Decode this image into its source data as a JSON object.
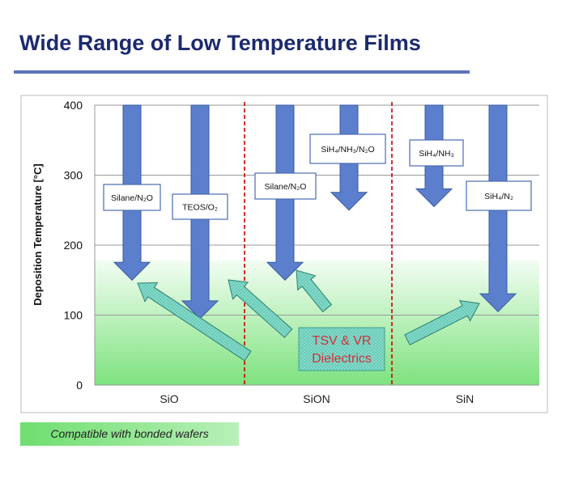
{
  "slide": {
    "title": "Wide Range of Low Temperature Films",
    "footer_badge": "Compatible with bonded wafers"
  },
  "chart_data": {
    "type": "bar",
    "ylabel": "Deposition Temperature [°C]",
    "ylim": [
      0,
      400
    ],
    "yticks": [
      0,
      100,
      200,
      300,
      400
    ],
    "grid": true,
    "categories": [
      "SiO",
      "SiON",
      "SiN"
    ],
    "compatible_band_max_c": 178,
    "films": [
      {
        "category": "SiO",
        "label": "Silane/N₂O",
        "start": 400,
        "end": 150
      },
      {
        "category": "SiO",
        "label": "TEOS/O₂",
        "start": 400,
        "end": 95
      },
      {
        "category": "SiON",
        "label": "Silane/N₂O",
        "start": 400,
        "end": 150
      },
      {
        "category": "SiON",
        "label": "SiH₄/NH₃/N₂O",
        "start": 400,
        "end": 250
      },
      {
        "category": "SiN",
        "label": "SiH₄/NH₃",
        "start": 400,
        "end": 255
      },
      {
        "category": "SiN",
        "label": "SiH₄/N₂",
        "start": 400,
        "end": 105
      }
    ],
    "annotation": {
      "line1": "TSV & VR",
      "line2": "Dielectrics"
    },
    "colors": {
      "arrow": "#5b7fcc",
      "arrow_edge": "#3a5a9e",
      "divider": "#cc0000",
      "band": "#90ee90",
      "pointer": "#7fd8c8"
    }
  }
}
